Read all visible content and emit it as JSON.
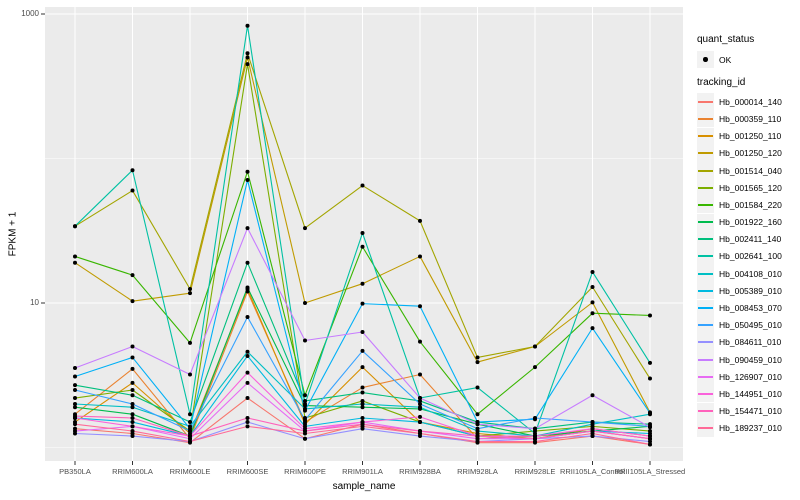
{
  "figure": {
    "background": "#FFFFFF",
    "panel_background": "#EBEBEB",
    "gridline_color": "#FFFFFF",
    "axis_text_color": "#4D4D4D",
    "tick_mark_color": "#333333",
    "point_color": "#000000",
    "legend_key_background": "#F2F2F2"
  },
  "chart_data": {
    "type": "line",
    "title": "",
    "xlabel": "sample_name",
    "ylabel": "FPKM + 1",
    "y_scale": "log10",
    "ylim": [
      0.8,
      1120
    ],
    "y_ticks": [
      10,
      1000
    ],
    "y_tick_labels": [
      "10",
      "1000"
    ],
    "y_minor_gridlines": [
      1,
      100
    ],
    "grid": true,
    "legend_position": "right",
    "categories": [
      "PB350LA",
      "RRIM600LA",
      "RRIM600LE",
      "RRIM600SE",
      "RRIM600PE",
      "RRIM901LA",
      "RRIM928BA",
      "RRIM928LA",
      "RRIM928LE",
      "RRII105LA_Control",
      "RRII105LA_Stressed"
    ],
    "series": [
      {
        "name": "Hb_000014_140",
        "color": "#F8766D",
        "values": [
          1.35,
          1.25,
          1.08,
          2.2,
          1.15,
          1.45,
          1.25,
          1.08,
          1.08,
          1.2,
          1.05
        ]
      },
      {
        "name": "Hb_000359_110",
        "color": "#EA8331",
        "values": [
          1.7,
          3.5,
          1.15,
          12,
          1.5,
          2.6,
          3.2,
          1.15,
          1.2,
          1.3,
          1.15
        ]
      },
      {
        "name": "Hb_001250_110",
        "color": "#D89000",
        "values": [
          1.5,
          2.8,
          1.25,
          12.5,
          1.45,
          3.6,
          1.5,
          1.25,
          1.15,
          1.35,
          1.2
        ]
      },
      {
        "name": "Hb_001250_120",
        "color": "#C09B00",
        "values": [
          19,
          10.3,
          11.7,
          500,
          10,
          13.6,
          21,
          3.9,
          5,
          10.1,
          1.75
        ]
      },
      {
        "name": "Hb_001514_040",
        "color": "#A3A500",
        "values": [
          34,
          60,
          12.5,
          535,
          33,
          65,
          37,
          4.2,
          5,
          12.9,
          3
        ]
      },
      {
        "name": "Hb_001565_120",
        "color": "#7CAE00",
        "values": [
          2.2,
          2.5,
          1.3,
          450,
          1.6,
          2.1,
          1.5,
          1.2,
          1.3,
          1.4,
          1.3
        ]
      },
      {
        "name": "Hb_001584_220",
        "color": "#39B600",
        "values": [
          21,
          15.6,
          5.3,
          81,
          2.3,
          24.5,
          5.4,
          1.7,
          3.6,
          8.5,
          8.2
        ]
      },
      {
        "name": "Hb_001922_160",
        "color": "#00BB4E",
        "values": [
          1.9,
          1.7,
          1.2,
          12.8,
          1.95,
          1.9,
          1.85,
          1.45,
          1.2,
          1.3,
          1.4
        ]
      },
      {
        "name": "Hb_002411_140",
        "color": "#00BF7D",
        "values": [
          2.7,
          2.3,
          1.5,
          19,
          2.1,
          2.4,
          2.1,
          1.5,
          1.35,
          1.5,
          1.45
        ]
      },
      {
        "name": "Hb_002641_100",
        "color": "#00C1A3",
        "values": [
          34,
          83,
          1.7,
          830,
          2,
          30.5,
          2.2,
          2.6,
          1.25,
          16.4,
          3.85
        ]
      },
      {
        "name": "Hb_004108_010",
        "color": "#00BFC4",
        "values": [
          2,
          1.9,
          1.4,
          4.6,
          1.85,
          2,
          1.9,
          1.3,
          1.2,
          1.45,
          1.7
        ]
      },
      {
        "name": "Hb_005389_010",
        "color": "#00BAE0",
        "values": [
          1.6,
          1.5,
          1.2,
          4.3,
          1.4,
          1.6,
          1.5,
          1.2,
          1.15,
          1.3,
          1.25
        ]
      },
      {
        "name": "Hb_008453_070",
        "color": "#00B0F6",
        "values": [
          3.1,
          4.2,
          1.35,
          71,
          1.8,
          9.9,
          9.5,
          1.5,
          1.57,
          6.7,
          1.73
        ]
      },
      {
        "name": "Hb_050495_010",
        "color": "#35A2FF",
        "values": [
          2.5,
          2,
          1.3,
          8,
          1.55,
          4.66,
          2,
          1.35,
          1.6,
          1.5,
          1.4
        ]
      },
      {
        "name": "Hb_084611_010",
        "color": "#9590FF",
        "values": [
          1.25,
          1.2,
          1.1,
          1.5,
          1.15,
          1.35,
          1.2,
          1.1,
          1.15,
          1.2,
          1.1
        ]
      },
      {
        "name": "Hb_090459_010",
        "color": "#C77CFF",
        "values": [
          3.55,
          5,
          3.2,
          33,
          5.5,
          6.3,
          2.2,
          1.45,
          1.35,
          2.3,
          1.38
        ]
      },
      {
        "name": "Hb_126907_010",
        "color": "#E76BF3",
        "values": [
          1.3,
          1.4,
          1.15,
          2.8,
          1.3,
          1.5,
          1.3,
          1.15,
          1.15,
          1.3,
          1.15
        ]
      },
      {
        "name": "Hb_144951_010",
        "color": "#FA62DB",
        "values": [
          1.6,
          1.4,
          1.2,
          3.3,
          1.35,
          1.5,
          1.63,
          1.2,
          1.2,
          1.35,
          1.2
        ]
      },
      {
        "name": "Hb_154471_010",
        "color": "#FF62BC",
        "values": [
          1.65,
          1.6,
          1.2,
          1.6,
          1.3,
          1.45,
          1.3,
          1.2,
          1.15,
          1.3,
          1.15
        ]
      },
      {
        "name": "Hb_189237_010",
        "color": "#FF6A98",
        "values": [
          1.45,
          1.3,
          1.1,
          1.4,
          1.25,
          1.4,
          1.25,
          1.1,
          1.1,
          1.25,
          1.05
        ]
      }
    ],
    "legend": {
      "quant_status": {
        "title": "quant_status",
        "items": [
          {
            "label": "OK",
            "marker": "point",
            "color": "#000000"
          }
        ]
      },
      "tracking_id": {
        "title": "tracking_id"
      }
    }
  }
}
